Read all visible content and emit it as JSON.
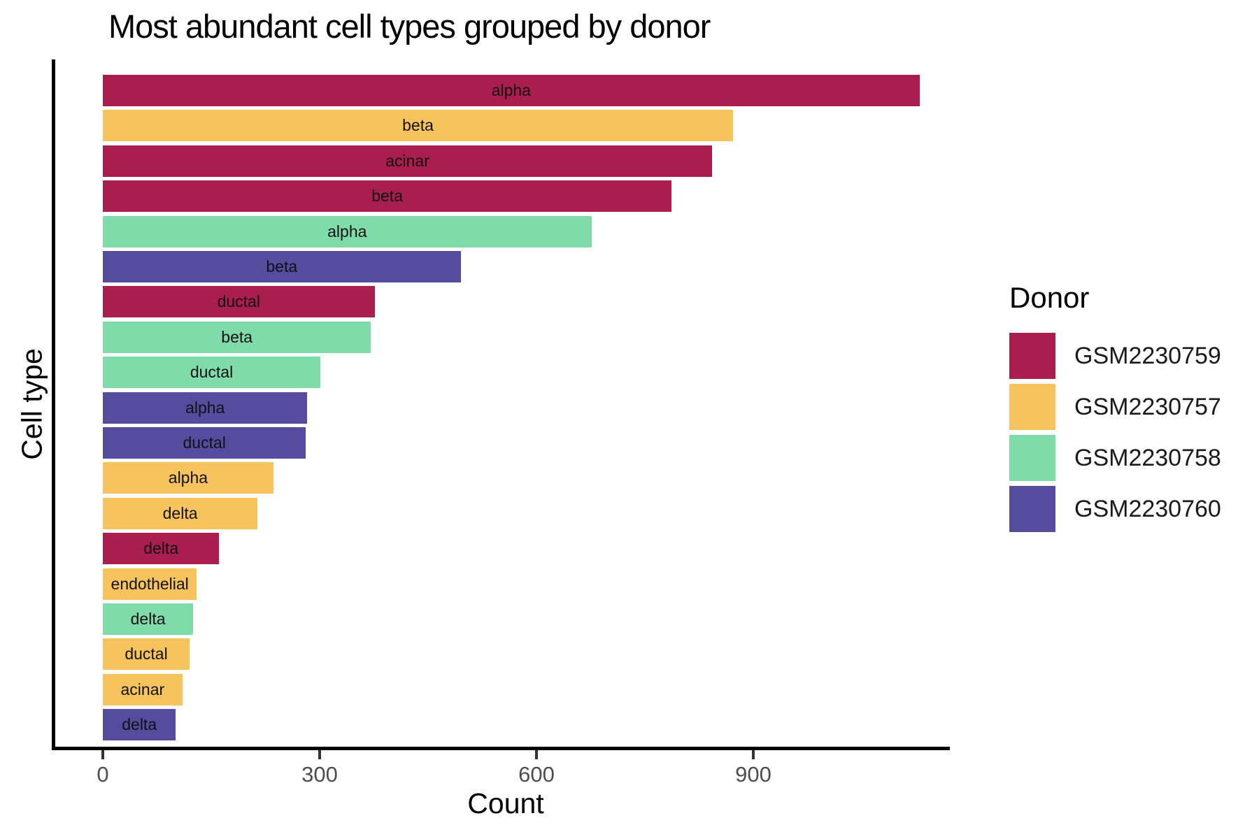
{
  "title": "Most abundant cell types grouped by donor",
  "x_axis": {
    "label": "Count",
    "ticks": [
      0,
      300,
      600,
      900
    ]
  },
  "y_axis": {
    "label": "Cell type"
  },
  "legend": {
    "title": "Donor",
    "items": [
      {
        "label": "GSM2230759",
        "color": "#A91E4E"
      },
      {
        "label": "GSM2230757",
        "color": "#F6C35C"
      },
      {
        "label": "GSM2230758",
        "color": "#7FDBAA"
      },
      {
        "label": "GSM2230760",
        "color": "#554B9F"
      }
    ]
  },
  "chart_data": {
    "type": "bar",
    "orientation": "horizontal",
    "title": "Most abundant cell types grouped by donor",
    "xlabel": "Count",
    "ylabel": "Cell type",
    "xlim": [
      0,
      1185
    ],
    "x_ticks": [
      0,
      300,
      600,
      900
    ],
    "grid": false,
    "legend_position": "right",
    "legend_title": "Donor",
    "bar_text_labels_inside": true,
    "donor_colors": {
      "GSM2230759": "#A91E4E",
      "GSM2230757": "#F6C35C",
      "GSM2230758": "#7FDBAA",
      "GSM2230760": "#554B9F"
    },
    "bars": [
      {
        "cell_type": "alpha",
        "donor": "GSM2230759",
        "count": 1130
      },
      {
        "cell_type": "beta",
        "donor": "GSM2230757",
        "count": 872
      },
      {
        "cell_type": "acinar",
        "donor": "GSM2230759",
        "count": 843
      },
      {
        "cell_type": "beta",
        "donor": "GSM2230759",
        "count": 787
      },
      {
        "cell_type": "alpha",
        "donor": "GSM2230758",
        "count": 676
      },
      {
        "cell_type": "beta",
        "donor": "GSM2230760",
        "count": 495
      },
      {
        "cell_type": "ductal",
        "donor": "GSM2230759",
        "count": 376
      },
      {
        "cell_type": "beta",
        "donor": "GSM2230758",
        "count": 371
      },
      {
        "cell_type": "ductal",
        "donor": "GSM2230758",
        "count": 301
      },
      {
        "cell_type": "alpha",
        "donor": "GSM2230760",
        "count": 283
      },
      {
        "cell_type": "ductal",
        "donor": "GSM2230760",
        "count": 281
      },
      {
        "cell_type": "alpha",
        "donor": "GSM2230757",
        "count": 236
      },
      {
        "cell_type": "delta",
        "donor": "GSM2230757",
        "count": 214
      },
      {
        "cell_type": "delta",
        "donor": "GSM2230759",
        "count": 161
      },
      {
        "cell_type": "endothelial",
        "donor": "GSM2230757",
        "count": 130
      },
      {
        "cell_type": "delta",
        "donor": "GSM2230758",
        "count": 125
      },
      {
        "cell_type": "ductal",
        "donor": "GSM2230757",
        "count": 120
      },
      {
        "cell_type": "acinar",
        "donor": "GSM2230757",
        "count": 110
      },
      {
        "cell_type": "delta",
        "donor": "GSM2230760",
        "count": 101
      }
    ]
  }
}
